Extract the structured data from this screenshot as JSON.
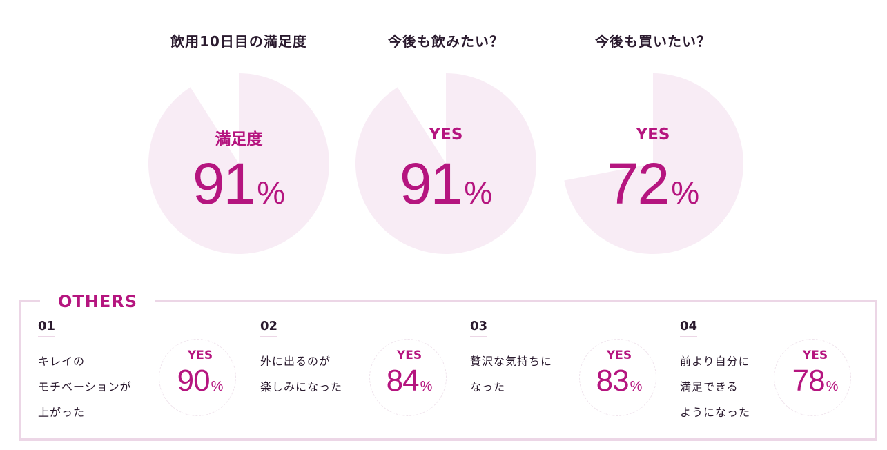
{
  "chart_data": [
    {
      "type": "pie",
      "title": "飲用10日目の満足度",
      "label": "満足度",
      "value": 91,
      "unit": "%"
    },
    {
      "type": "pie",
      "title": "今後も飲みたい？",
      "label": "YES",
      "value": 91,
      "unit": "%"
    },
    {
      "type": "pie",
      "title": "今後も買いたい？",
      "label": "YES",
      "value": 72,
      "unit": "%"
    }
  ],
  "others": {
    "title": "OTHERS",
    "items": [
      {
        "num": "01",
        "lines": [
          "キレイの",
          "モチベーションが",
          "上がった"
        ],
        "label": "YES",
        "value": "90",
        "unit": "%"
      },
      {
        "num": "02",
        "lines": [
          "外に出るのが",
          "楽しみになった"
        ],
        "label": "YES",
        "value": "84",
        "unit": "%"
      },
      {
        "num": "03",
        "lines": [
          "贅沢な気持ちに",
          "なった"
        ],
        "label": "YES",
        "value": "83",
        "unit": "%"
      },
      {
        "num": "04",
        "lines": [
          "前より自分に",
          "満足できる",
          "ようになった"
        ],
        "label": "YES",
        "value": "78",
        "unit": "%"
      }
    ]
  },
  "colors": {
    "accent": "#b5157f",
    "pie_fill": "#f8ecf5",
    "border": "#ecd6e6",
    "text": "#2a1a2e"
  }
}
